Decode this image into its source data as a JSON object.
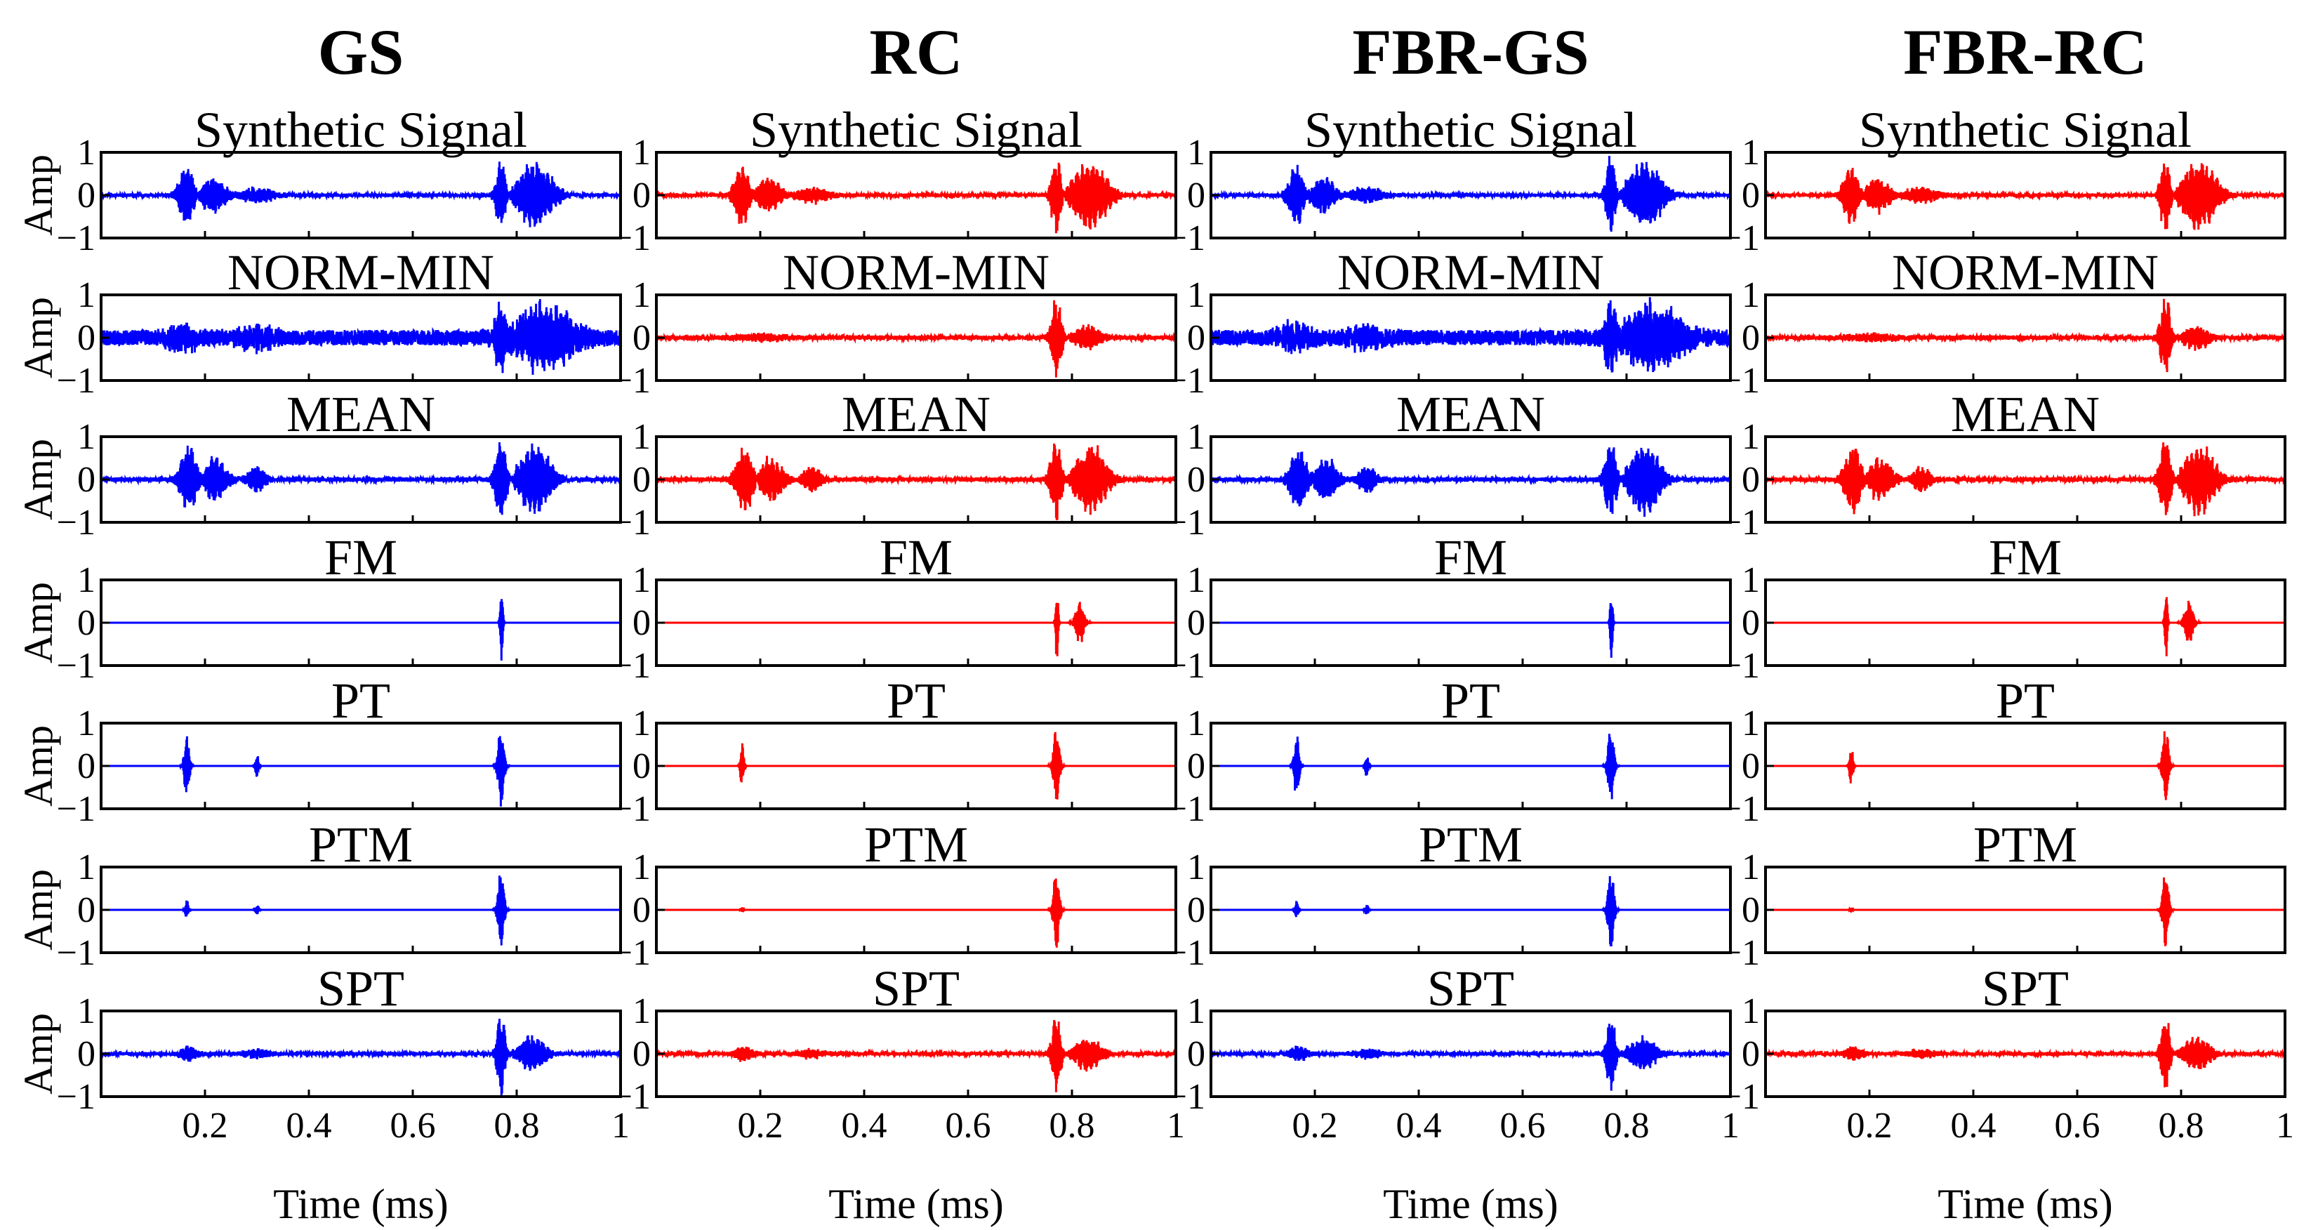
{
  "figure": {
    "ylabel": "Amp",
    "xlabel": "Time (ms)"
  },
  "chart_data": {
    "type": "line",
    "x_range": [
      0,
      1
    ],
    "y_range": [
      -1,
      1
    ],
    "y_ticks": [
      1,
      0,
      -1
    ],
    "y_tick_labels": [
      "1",
      "0",
      "−1"
    ],
    "x_ticks": [
      0.2,
      0.4,
      0.6,
      0.8,
      1
    ],
    "x_tick_labels": [
      "0.2",
      "0.4",
      "0.6",
      "0.8",
      "1"
    ],
    "columns": [
      {
        "title": "GS",
        "color": "#0000ff"
      },
      {
        "title": "RC",
        "color": "#ff0000"
      },
      {
        "title": "FBR-GS",
        "color": "#0000ff"
      },
      {
        "title": "FBR-RC",
        "color": "#ff0000"
      }
    ],
    "rows": [
      {
        "title": "Synthetic Signal"
      },
      {
        "title": "NORM-MIN"
      },
      {
        "title": "MEAN"
      },
      {
        "title": "FM"
      },
      {
        "title": "PT"
      },
      {
        "title": "PTM"
      },
      {
        "title": "SPT"
      }
    ],
    "waveforms": {
      "synthetic": {
        "noise": 0.04,
        "bursts": [
          {
            "center": 0.165,
            "width": 0.018,
            "amp": 0.8
          },
          {
            "center": 0.215,
            "width": 0.03,
            "amp": 0.45
          },
          {
            "center": 0.3,
            "width": 0.04,
            "amp": 0.2
          },
          {
            "center": 0.77,
            "width": 0.012,
            "amp": 1.0
          },
          {
            "center": 0.835,
            "width": 0.04,
            "amp": 0.85
          }
        ]
      },
      "normmin_gs": {
        "noise": 0.18,
        "bursts": [
          {
            "center": 0.16,
            "width": 0.04,
            "amp": 0.3
          },
          {
            "center": 0.3,
            "width": 0.05,
            "amp": 0.25
          },
          {
            "center": 0.77,
            "width": 0.015,
            "amp": 1.0
          },
          {
            "center": 0.85,
            "width": 0.07,
            "amp": 0.8
          }
        ]
      },
      "normmin_rc": {
        "noise": 0.05,
        "bursts": [
          {
            "center": 0.2,
            "width": 0.06,
            "amp": 0.1
          },
          {
            "center": 0.77,
            "width": 0.012,
            "amp": 1.0
          },
          {
            "center": 0.83,
            "width": 0.03,
            "amp": 0.3
          }
        ]
      },
      "mean": {
        "noise": 0.05,
        "bursts": [
          {
            "center": 0.17,
            "width": 0.02,
            "amp": 0.85
          },
          {
            "center": 0.22,
            "width": 0.028,
            "amp": 0.55
          },
          {
            "center": 0.3,
            "width": 0.02,
            "amp": 0.35
          },
          {
            "center": 0.77,
            "width": 0.014,
            "amp": 1.0
          },
          {
            "center": 0.835,
            "width": 0.035,
            "amp": 0.9
          }
        ]
      },
      "fm_gs": {
        "noise": 0.0,
        "bursts": [
          {
            "center": 0.771,
            "width": 0.003,
            "amp": 1.0
          }
        ]
      },
      "fm_rc": {
        "noise": 0.0,
        "bursts": [
          {
            "center": 0.771,
            "width": 0.003,
            "amp": 1.0
          },
          {
            "center": 0.815,
            "width": 0.01,
            "amp": 0.55
          }
        ]
      },
      "pt_gs": {
        "noise": 0.0,
        "bursts": [
          {
            "center": 0.165,
            "width": 0.006,
            "amp": 0.8
          },
          {
            "center": 0.3,
            "width": 0.004,
            "amp": 0.3
          },
          {
            "center": 0.77,
            "width": 0.007,
            "amp": 1.0
          }
        ]
      },
      "pt_rc": {
        "noise": 0.0,
        "bursts": [
          {
            "center": 0.165,
            "width": 0.004,
            "amp": 0.55
          },
          {
            "center": 0.77,
            "width": 0.007,
            "amp": 1.0
          }
        ]
      },
      "ptm_gs": {
        "noise": 0.0,
        "bursts": [
          {
            "center": 0.165,
            "width": 0.004,
            "amp": 0.25
          },
          {
            "center": 0.3,
            "width": 0.004,
            "amp": 0.15
          },
          {
            "center": 0.77,
            "width": 0.007,
            "amp": 1.0
          }
        ]
      },
      "ptm_rc": {
        "noise": 0.0,
        "bursts": [
          {
            "center": 0.165,
            "width": 0.003,
            "amp": 0.08
          },
          {
            "center": 0.77,
            "width": 0.007,
            "amp": 1.0
          }
        ]
      },
      "spt": {
        "noise": 0.04,
        "bursts": [
          {
            "center": 0.17,
            "width": 0.02,
            "amp": 0.2
          },
          {
            "center": 0.3,
            "width": 0.03,
            "amp": 0.12
          },
          {
            "center": 0.77,
            "width": 0.01,
            "amp": 1.0
          },
          {
            "center": 0.83,
            "width": 0.03,
            "amp": 0.45
          }
        ]
      }
    },
    "waveform_map": [
      [
        "synthetic",
        "synthetic",
        "synthetic",
        "synthetic"
      ],
      [
        "normmin_gs",
        "normmin_rc",
        "normmin_gs",
        "normmin_rc"
      ],
      [
        "mean",
        "mean",
        "mean",
        "mean"
      ],
      [
        "fm_gs",
        "fm_rc",
        "fm_gs",
        "fm_rc"
      ],
      [
        "pt_gs",
        "pt_rc",
        "pt_gs",
        "pt_rc"
      ],
      [
        "ptm_gs",
        "ptm_rc",
        "ptm_gs",
        "ptm_rc"
      ],
      [
        "spt",
        "spt",
        "spt",
        "spt"
      ]
    ]
  }
}
